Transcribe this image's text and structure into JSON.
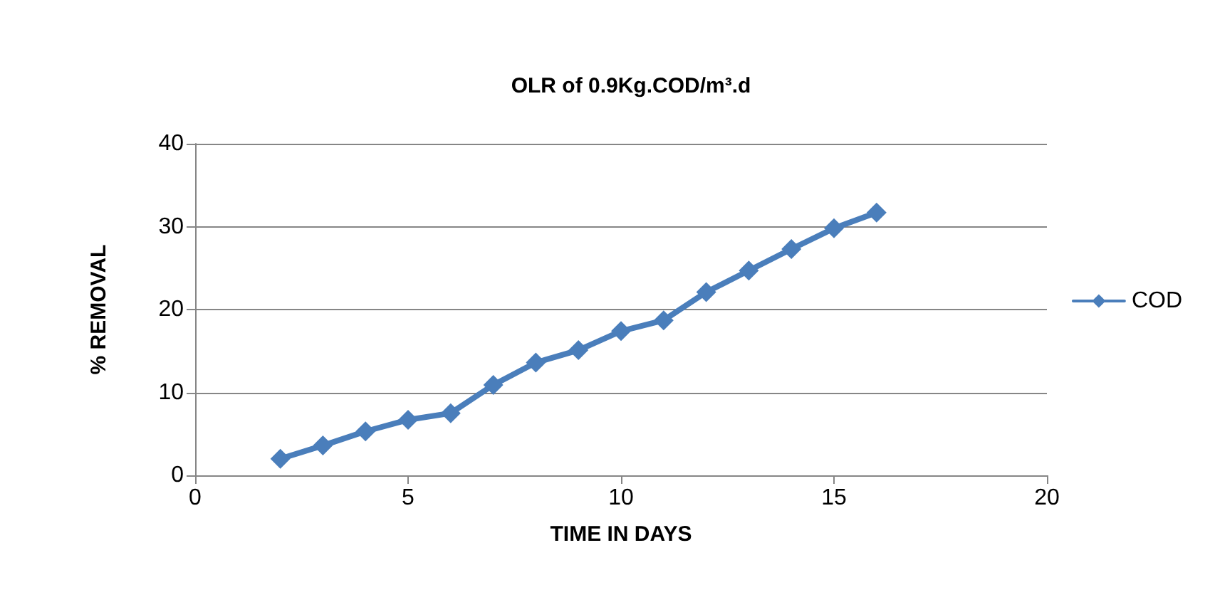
{
  "chart_data": {
    "type": "line",
    "title": "OLR of 0.9Kg.COD/m³.d",
    "xlabel": "TIME IN DAYS",
    "ylabel": "% REMOVAL",
    "x": [
      2,
      3,
      4,
      5,
      6,
      7,
      8,
      9,
      10,
      11,
      12,
      13,
      14,
      15,
      16
    ],
    "series": [
      {
        "name": "COD",
        "color": "#4a7ebb",
        "values": [
          2.0,
          3.6,
          5.3,
          6.7,
          7.5,
          10.9,
          13.6,
          15.1,
          17.4,
          18.7,
          22.1,
          24.7,
          27.3,
          29.8,
          31.7
        ]
      }
    ],
    "xlim": [
      0,
      20
    ],
    "xticks": [
      0,
      5,
      10,
      15,
      20
    ],
    "ylim": [
      0,
      40
    ],
    "yticks": [
      0,
      10,
      20,
      30,
      40
    ],
    "grid": "y",
    "legend": "right",
    "marker": "diamond",
    "line_style": "solid"
  }
}
